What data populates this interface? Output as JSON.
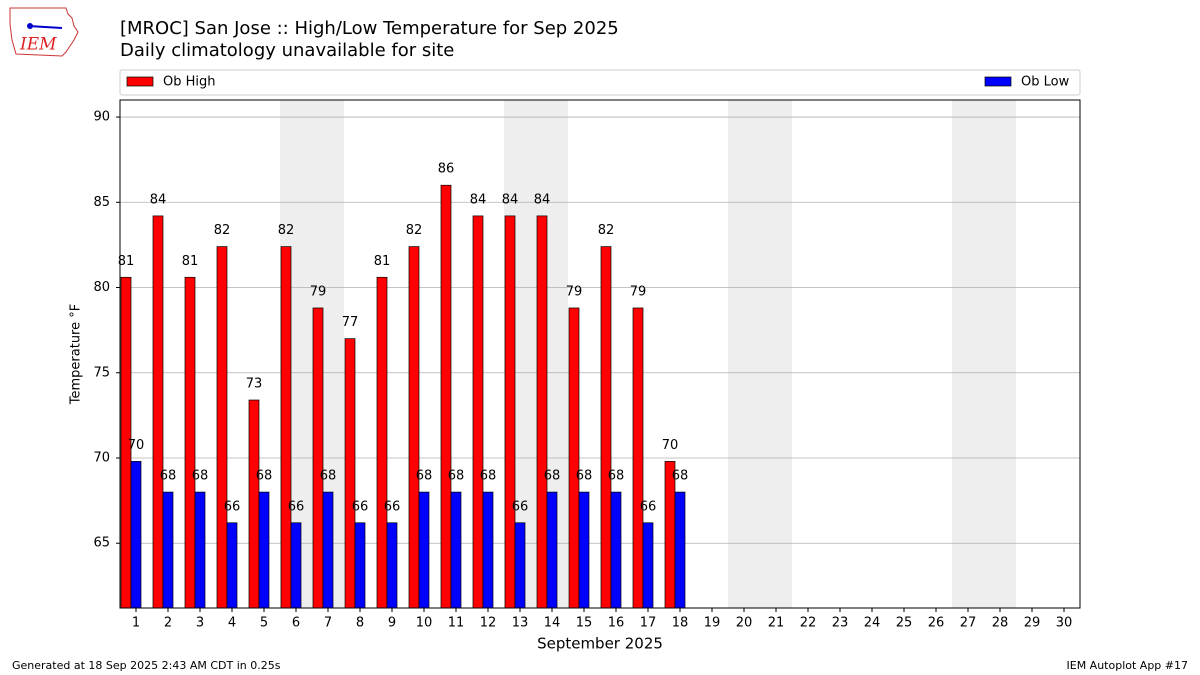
{
  "logo": "IEM",
  "footer_left": "Generated at 18 Sep 2025 2:43 AM CDT in 0.25s",
  "footer_right": "IEM Autoplot App #17",
  "chart_data": {
    "type": "bar",
    "title": "[MROC] San Jose :: High/Low Temperature for Sep 2025",
    "subtitle": "Daily climatology unavailable for site",
    "y_label": "Temperature °F",
    "x_label": "September 2025",
    "categories": [
      "1",
      "2",
      "3",
      "4",
      "5",
      "6",
      "7",
      "8",
      "9",
      "10",
      "11",
      "12",
      "13",
      "14",
      "15",
      "16",
      "17",
      "18",
      "19",
      "20",
      "21",
      "22",
      "23",
      "24",
      "25",
      "26",
      "27",
      "28",
      "29",
      "30"
    ],
    "shaded_categories": [
      6,
      7,
      13,
      14,
      20,
      21,
      27,
      28
    ],
    "series": [
      {
        "name": "Ob High",
        "color": "#ff0000",
        "values": [
          80.6,
          84.2,
          80.6,
          82.4,
          73.4,
          82.4,
          78.8,
          77.0,
          80.6,
          82.4,
          86.0,
          84.2,
          84.2,
          84.2,
          78.8,
          82.4,
          78.8,
          69.8,
          null,
          null,
          null,
          null,
          null,
          null,
          null,
          null,
          null,
          null,
          null,
          null
        ],
        "value_labels": [
          "81",
          "84",
          "81",
          "82",
          "73",
          "82",
          "79",
          "77",
          "81",
          "82",
          "86",
          "84",
          "84",
          "84",
          "79",
          "82",
          "79",
          "70",
          null,
          null,
          null,
          null,
          null,
          null,
          null,
          null,
          null,
          null,
          null,
          null
        ]
      },
      {
        "name": "Ob Low",
        "color": "#0000ff",
        "values": [
          69.8,
          68.0,
          68.0,
          66.2,
          68.0,
          66.2,
          68.0,
          66.2,
          66.2,
          68.0,
          68.0,
          68.0,
          66.2,
          68.0,
          68.0,
          68.0,
          66.2,
          68.0,
          null,
          null,
          null,
          null,
          null,
          null,
          null,
          null,
          null,
          null,
          null,
          null
        ],
        "value_labels": [
          "70",
          "68",
          "68",
          "66",
          "68",
          "66",
          "68",
          "66",
          "66",
          "68",
          "68",
          "68",
          "66",
          "68",
          "68",
          "68",
          "66",
          "68",
          null,
          null,
          null,
          null,
          null,
          null,
          null,
          null,
          null,
          null,
          null,
          null
        ]
      }
    ],
    "ylim": [
      61.2,
      91
    ],
    "yticks": [
      65,
      70,
      75,
      80,
      85,
      90
    ],
    "grid": true,
    "legend": "top"
  }
}
